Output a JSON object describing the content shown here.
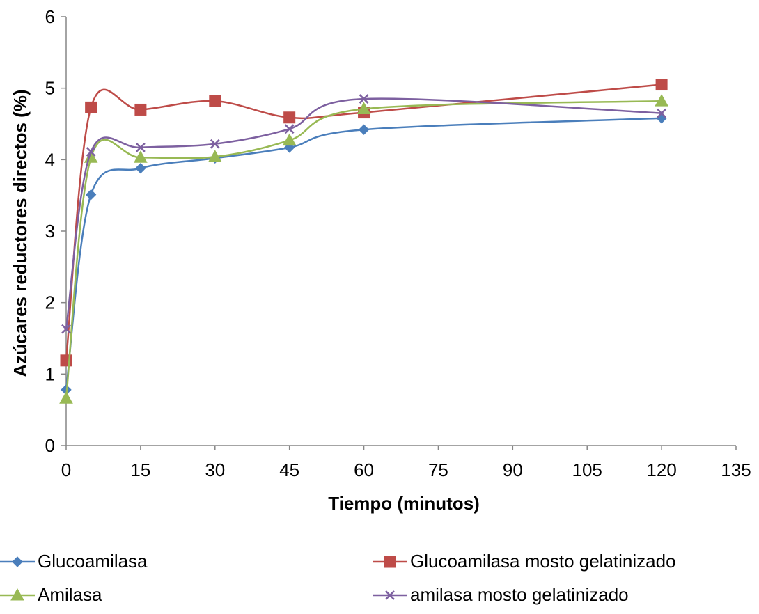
{
  "chart_data": {
    "type": "scatter",
    "title": "",
    "xlabel": "Tiempo (minutos)",
    "ylabel": "Azúcares reductores directos (%)",
    "xlim": [
      0,
      135
    ],
    "ylim": [
      0,
      6
    ],
    "xticks": [
      0,
      15,
      30,
      45,
      60,
      75,
      90,
      105,
      120,
      135
    ],
    "yticks": [
      0,
      1,
      2,
      3,
      4,
      5,
      6
    ],
    "grid": false,
    "legend_position": "bottom",
    "series": [
      {
        "name": "Glucoamilasa",
        "color": "#4a7ebb",
        "marker": "diamond",
        "x": [
          0,
          5,
          15,
          30,
          45,
          60,
          120
        ],
        "y": [
          0.78,
          3.51,
          3.88,
          4.02,
          4.17,
          4.42,
          4.58
        ]
      },
      {
        "name": "Glucoamilasa mosto gelatinizado",
        "color": "#be4b48",
        "marker": "square",
        "x": [
          0,
          5,
          15,
          30,
          45,
          60,
          120
        ],
        "y": [
          1.19,
          4.73,
          4.7,
          4.82,
          4.59,
          4.66,
          5.05
        ]
      },
      {
        "name": "Amilasa",
        "color": "#98b954",
        "marker": "triangle",
        "x": [
          0,
          5,
          15,
          30,
          45,
          60,
          120
        ],
        "y": [
          0.66,
          4.03,
          4.03,
          4.04,
          4.27,
          4.71,
          4.82
        ]
      },
      {
        "name": "amilasa mosto gelatinizado",
        "color": "#7d60a0",
        "marker": "x",
        "x": [
          0,
          5,
          15,
          30,
          45,
          60,
          120
        ],
        "y": [
          1.63,
          4.11,
          4.17,
          4.22,
          4.43,
          4.85,
          4.65
        ]
      }
    ]
  }
}
